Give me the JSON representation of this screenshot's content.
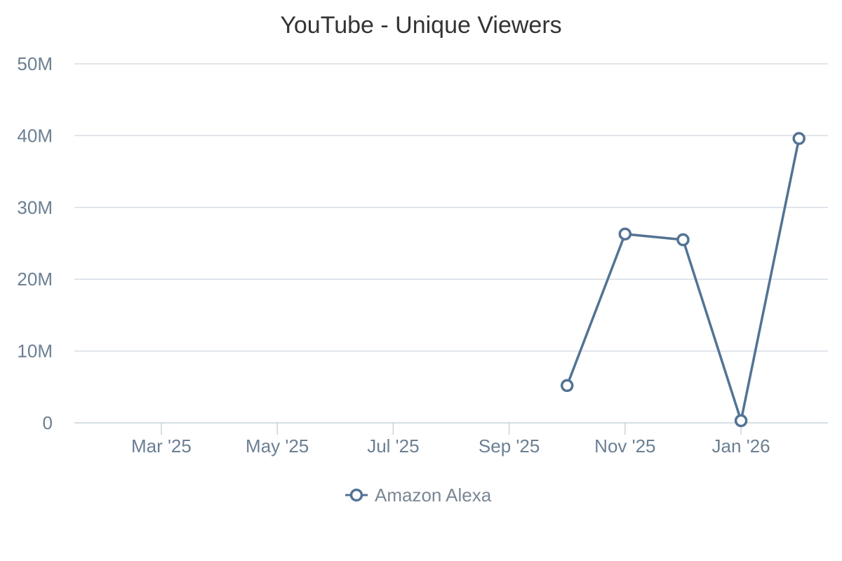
{
  "chart_data": {
    "type": "line",
    "title": "YouTube - Unique Viewers",
    "xlabel": "",
    "ylabel": "",
    "ylim": [
      0,
      50000000
    ],
    "y_ticks": [
      {
        "value": 0,
        "label": "0"
      },
      {
        "value": 10000000,
        "label": "10M"
      },
      {
        "value": 20000000,
        "label": "20M"
      },
      {
        "value": 30000000,
        "label": "30M"
      },
      {
        "value": 40000000,
        "label": "40M"
      },
      {
        "value": 50000000,
        "label": "50M"
      }
    ],
    "x_ticks": [
      "Mar '25",
      "May '25",
      "Jul '25",
      "Sep '25",
      "Nov '25",
      "Jan '26"
    ],
    "x_tick_months": [
      "2025-03",
      "2025-05",
      "2025-07",
      "2025-09",
      "2025-11",
      "2026-01"
    ],
    "x_range": [
      "2025-02",
      "2026-02"
    ],
    "grid": true,
    "legend_position": "bottom-center",
    "series": [
      {
        "name": "Amazon Alexa",
        "color": "#527394",
        "x": [
          "2025-10",
          "2025-11",
          "2025-12",
          "2026-01",
          "2026-02"
        ],
        "values": [
          5200000,
          26300000,
          25500000,
          300000,
          39600000
        ]
      }
    ]
  }
}
